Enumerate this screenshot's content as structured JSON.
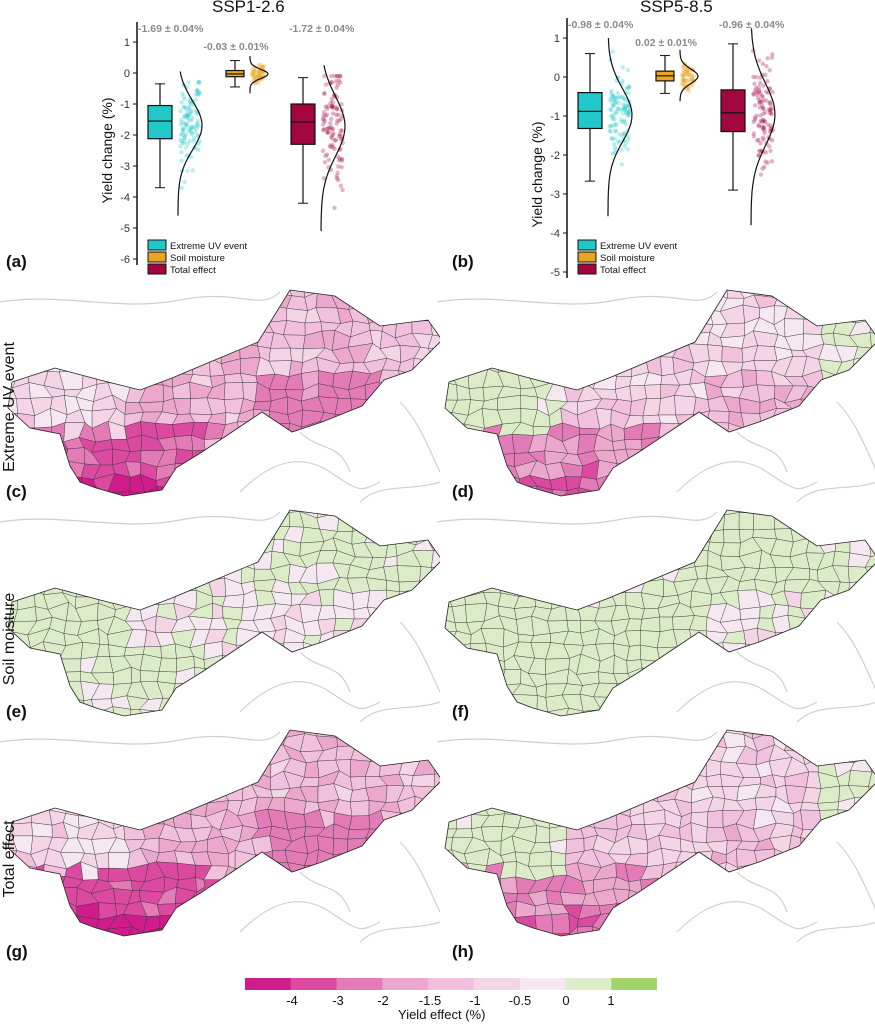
{
  "scale_colors": [
    {
      "max": -4,
      "color": "#d01c8b"
    },
    {
      "max": -3,
      "color": "#db4aa0"
    },
    {
      "max": -2,
      "color": "#e37cb6"
    },
    {
      "max": -1.5,
      "color": "#eba7cc"
    },
    {
      "max": -1,
      "color": "#f1c0dc"
    },
    {
      "max": -0.5,
      "color": "#f4d5e6"
    },
    {
      "max": 0,
      "color": "#f5e8f0"
    },
    {
      "max": 1,
      "color": "#dcecc8"
    },
    {
      "max": 99,
      "color": "#a1d56b"
    }
  ],
  "row_labels": [
    "Extreme UV event",
    "Soil moisture",
    "Total effect"
  ],
  "colorbar": {
    "title": "Yield effect (%)",
    "ticks": [
      "-4",
      "-3",
      "-2",
      "-1.5",
      "-1",
      "-0.5",
      "0",
      "1"
    ]
  },
  "chart_data": [
    {
      "type": "box",
      "panel": "(a)",
      "title": "SSP1-2.6",
      "ylabel": "Yield change (%)",
      "ylim": [
        -6,
        1
      ],
      "yticks": [
        "1",
        "0",
        "-1",
        "-2",
        "-3",
        "-4",
        "-5",
        "-6"
      ],
      "series": [
        {
          "name": "Extreme UV event",
          "color": "#22c7c9",
          "mean_label": "-1.69 ± 0.04%",
          "mean": -1.69,
          "median": -1.55,
          "q1": -2.12,
          "q3": -1.05,
          "whisker_low": -3.7,
          "whisker_high": -0.35
        },
        {
          "name": "Soil moisture",
          "color": "#e8a423",
          "mean_label": "-0.03 ± 0.01%",
          "mean": -0.03,
          "median": -0.03,
          "q1": -0.12,
          "q3": 0.08,
          "whisker_low": -0.45,
          "whisker_high": 0.4
        },
        {
          "name": "Total effect",
          "color": "#a1063f",
          "mean_label": "-1.72 ± 0.04%",
          "mean": -1.72,
          "median": -1.58,
          "q1": -2.3,
          "q3": -1.0,
          "whisker_low": -4.2,
          "whisker_high": -0.15
        }
      ]
    },
    {
      "type": "box",
      "panel": "(b)",
      "title": "SSP5-8.5",
      "ylabel": "Yield change (%)",
      "ylim": [
        -5,
        1
      ],
      "yticks": [
        "1",
        "0",
        "-1",
        "-2",
        "-3",
        "-4",
        "-5"
      ],
      "series": [
        {
          "name": "Extreme UV event",
          "color": "#22c7c9",
          "mean_label": "-0.98 ± 0.04%",
          "mean": -0.98,
          "median": -0.88,
          "q1": -1.32,
          "q3": -0.4,
          "whisker_low": -2.67,
          "whisker_high": 0.6
        },
        {
          "name": "Soil moisture",
          "color": "#e8a423",
          "mean_label": "0.02 ± 0.01%",
          "mean": 0.02,
          "median": 0.03,
          "q1": -0.1,
          "q3": 0.15,
          "whisker_low": -0.42,
          "whisker_high": 0.55
        },
        {
          "name": "Total effect",
          "color": "#a1063f",
          "mean_label": "-0.96 ± 0.04%",
          "mean": -0.96,
          "median": -0.92,
          "q1": -1.4,
          "q3": -0.33,
          "whisker_low": -2.9,
          "whisker_high": 0.85
        }
      ]
    },
    {
      "type": "heatmap",
      "panel": "(c)",
      "variable": "Extreme UV event",
      "scenario": "SSP1-2.6",
      "zones": {
        "west": -0.6,
        "south": -3.2,
        "central": -1.4,
        "ne": -1.3,
        "ne_south": -2.4,
        "east": -1.0
      }
    },
    {
      "type": "heatmap",
      "panel": "(d)",
      "variable": "Extreme UV event",
      "scenario": "SSP5-8.5",
      "zones": {
        "west": 0.4,
        "south": -2.0,
        "central": -0.9,
        "ne": -0.6,
        "ne_south": -1.4,
        "east": 0.2
      }
    },
    {
      "type": "heatmap",
      "panel": "(e)",
      "variable": "Soil moisture",
      "scenario": "SSP1-2.6",
      "zones": {
        "west": 0.5,
        "south": 0.2,
        "central": -0.3,
        "ne": 0.3,
        "ne_south": -0.3,
        "east": 0.2
      }
    },
    {
      "type": "heatmap",
      "panel": "(f)",
      "variable": "Soil moisture",
      "scenario": "SSP5-8.5",
      "zones": {
        "west": 0.5,
        "south": 0.5,
        "central": 0.3,
        "ne": 0.5,
        "ne_south": -0.2,
        "east": 0.3
      }
    },
    {
      "type": "heatmap",
      "panel": "(g)",
      "variable": "Total effect",
      "scenario": "SSP1-2.6",
      "zones": {
        "west": -0.7,
        "south": -3.4,
        "central": -1.5,
        "ne": -1.4,
        "ne_south": -2.5,
        "east": -1.2
      }
    },
    {
      "type": "heatmap",
      "panel": "(h)",
      "variable": "Total effect",
      "scenario": "SSP5-8.5",
      "zones": {
        "west": 0.4,
        "south": -2.0,
        "central": -1.0,
        "ne": -0.8,
        "ne_south": -1.3,
        "east": 0.2
      }
    }
  ]
}
